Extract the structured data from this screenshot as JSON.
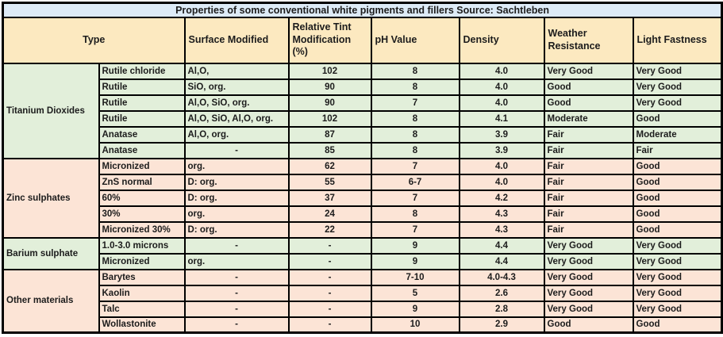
{
  "title": "Properties of some conventional white pigments and fillers Source: Sachtleben",
  "columns": {
    "type": "Type",
    "surface": "Surface Modified",
    "tint": "Relative Tint Modification (%)",
    "ph": "pH Value",
    "density": "Density",
    "weather": "Weather Resistance",
    "light": "Light Fastness"
  },
  "colors": {
    "title_bg": "#DDEBF7",
    "header_bg": "#FCE9C0",
    "green_row_bg": "#E2EFDA",
    "pink_row_bg": "#FCE4D6",
    "border": "#000000",
    "text": "#1C1C1C"
  },
  "groups": [
    {
      "name": "Titanium Dioxides",
      "tone": "green",
      "rows": [
        {
          "type": "Rutile chloride",
          "surface": "Al,O,",
          "tint": "102",
          "ph": "8",
          "density": "4.0",
          "weather": "Very Good",
          "light": "Very Good"
        },
        {
          "type": "Rutile",
          "surface": "SiO, org.",
          "tint": "90",
          "ph": "8",
          "density": "4.0",
          "weather": "Good",
          "light": "Very Good"
        },
        {
          "type": "Rutile",
          "surface": "Al,O, SiO, org.",
          "tint": "90",
          "ph": "7",
          "density": "4.0",
          "weather": "Good",
          "light": "Very Good"
        },
        {
          "type": "Rutile",
          "surface": "Al,O, SiO, Al,O, org.",
          "tint": "102",
          "ph": "8",
          "density": "4.1",
          "weather": "Moderate",
          "light": "Good"
        },
        {
          "type": "Anatase",
          "surface": "Al,O, org.",
          "tint": "87",
          "ph": "8",
          "density": "3.9",
          "weather": "Fair",
          "light": "Moderate"
        },
        {
          "type": "Anatase",
          "surface": "-",
          "tint": "85",
          "ph": "8",
          "density": "3.9",
          "weather": "Fair",
          "light": "Fair"
        }
      ]
    },
    {
      "name": "Zinc sulphates",
      "tone": "pink",
      "rows": [
        {
          "type": "Micronized",
          "surface": "org.",
          "tint": "62",
          "ph": "7",
          "density": "4.0",
          "weather": "Fair",
          "light": "Good"
        },
        {
          "type": "ZnS normal",
          "surface": "D: org.",
          "tint": "55",
          "ph": "6-7",
          "density": "4.0",
          "weather": "Fair",
          "light": "Good"
        },
        {
          "type": "60%",
          "surface": "D: org.",
          "tint": "37",
          "ph": "7",
          "density": "4.2",
          "weather": "Fair",
          "light": "Good"
        },
        {
          "type": "30%",
          "surface": "org.",
          "tint": "24",
          "ph": "8",
          "density": "4.3",
          "weather": "Fair",
          "light": "Good"
        },
        {
          "type": "Micronized 30%",
          "surface": "D: org.",
          "tint": "22",
          "ph": "7",
          "density": "4.3",
          "weather": "Fair",
          "light": "Good"
        }
      ]
    },
    {
      "name": "Barium sulphate",
      "tone": "green",
      "rows": [
        {
          "type": "1.0-3.0 microns",
          "surface": "-",
          "tint": "-",
          "ph": "9",
          "density": "4.4",
          "weather": "Very Good",
          "light": "Very Good"
        },
        {
          "type": "Micronized",
          "surface": "org.",
          "tint": "-",
          "ph": "9",
          "density": "4.4",
          "weather": "Very Good",
          "light": "Very Good"
        }
      ]
    },
    {
      "name": "Other materials",
      "tone": "pink",
      "rows": [
        {
          "type": "Barytes",
          "surface": "-",
          "tint": "-",
          "ph": "7-10",
          "density": "4.0-4.3",
          "weather": "Very Good",
          "light": "Very Good"
        },
        {
          "type": "Kaolin",
          "surface": "-",
          "tint": "-",
          "ph": "5",
          "density": "2.6",
          "weather": "Very Good",
          "light": "Very Good"
        },
        {
          "type": "Talc",
          "surface": "-",
          "tint": "-",
          "ph": "9",
          "density": "2.8",
          "weather": "Very Good",
          "light": "Very Good"
        },
        {
          "type": "Wollastonite",
          "surface": "-",
          "tint": "-",
          "ph": "10",
          "density": "2.9",
          "weather": "Good",
          "light": "Good"
        }
      ]
    }
  ],
  "chart_data": {
    "type": "table",
    "title": "Properties of some conventional white pigments and fillers Source: Sachtleben",
    "columns": [
      "Type group",
      "Type",
      "Surface Modified",
      "Relative Tint Modification (%)",
      "pH Value",
      "Density",
      "Weather Resistance",
      "Light Fastness"
    ],
    "rows": [
      [
        "Titanium Dioxides",
        "Rutile chloride",
        "Al,O,",
        "102",
        "8",
        "4.0",
        "Very Good",
        "Very Good"
      ],
      [
        "Titanium Dioxides",
        "Rutile",
        "SiO, org.",
        "90",
        "8",
        "4.0",
        "Good",
        "Very Good"
      ],
      [
        "Titanium Dioxides",
        "Rutile",
        "Al,O, SiO, org.",
        "90",
        "7",
        "4.0",
        "Good",
        "Very Good"
      ],
      [
        "Titanium Dioxides",
        "Rutile",
        "Al,O, SiO, Al,O, org.",
        "102",
        "8",
        "4.1",
        "Moderate",
        "Good"
      ],
      [
        "Titanium Dioxides",
        "Anatase",
        "Al,O, org.",
        "87",
        "8",
        "3.9",
        "Fair",
        "Moderate"
      ],
      [
        "Titanium Dioxides",
        "Anatase",
        "-",
        "85",
        "8",
        "3.9",
        "Fair",
        "Fair"
      ],
      [
        "Zinc sulphates",
        "Micronized",
        "org.",
        "62",
        "7",
        "4.0",
        "Fair",
        "Good"
      ],
      [
        "Zinc sulphates",
        "ZnS normal",
        "D: org.",
        "55",
        "6-7",
        "4.0",
        "Fair",
        "Good"
      ],
      [
        "Zinc sulphates",
        "60%",
        "D: org.",
        "37",
        "7",
        "4.2",
        "Fair",
        "Good"
      ],
      [
        "Zinc sulphates",
        "30%",
        "org.",
        "24",
        "8",
        "4.3",
        "Fair",
        "Good"
      ],
      [
        "Zinc sulphates",
        "Micronized 30%",
        "D: org.",
        "22",
        "7",
        "4.3",
        "Fair",
        "Good"
      ],
      [
        "Barium sulphate",
        "1.0-3.0 microns",
        "-",
        "-",
        "9",
        "4.4",
        "Very Good",
        "Very Good"
      ],
      [
        "Barium sulphate",
        "Micronized",
        "org.",
        "-",
        "9",
        "4.4",
        "Very Good",
        "Very Good"
      ],
      [
        "Other materials",
        "Barytes",
        "-",
        "-",
        "7-10",
        "4.0-4.3",
        "Very Good",
        "Very Good"
      ],
      [
        "Other materials",
        "Kaolin",
        "-",
        "-",
        "5",
        "2.6",
        "Very Good",
        "Very Good"
      ],
      [
        "Other materials",
        "Talc",
        "-",
        "-",
        "9",
        "2.8",
        "Very Good",
        "Very Good"
      ],
      [
        "Other materials",
        "Wollastonite",
        "-",
        "-",
        "10",
        "2.9",
        "Good",
        "Good"
      ]
    ]
  }
}
